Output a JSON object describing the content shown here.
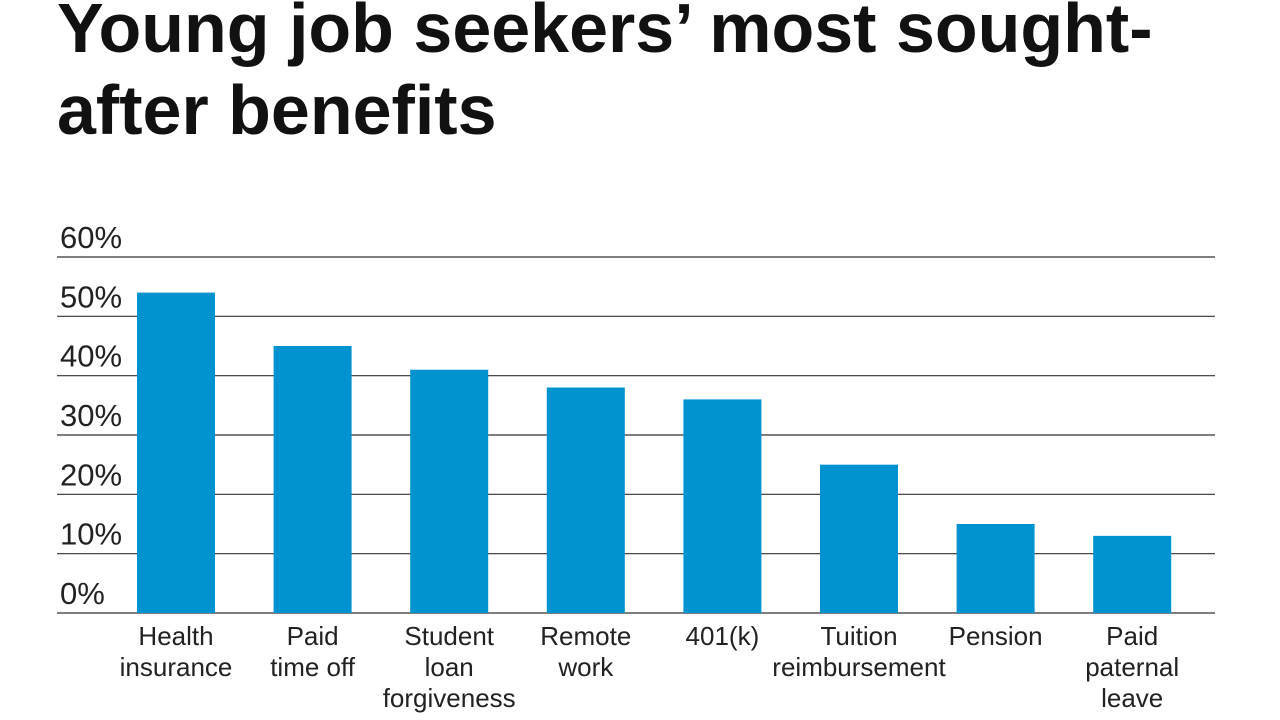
{
  "chart_data": {
    "type": "bar",
    "title": [
      "Young job seekers’ most sought-",
      "after benefits"
    ],
    "categories": [
      [
        "Health",
        "insurance"
      ],
      [
        "Paid",
        "time off"
      ],
      [
        "Student",
        "loan",
        "forgiveness"
      ],
      [
        "Remote",
        "work"
      ],
      [
        "401(k)"
      ],
      [
        "Tuition",
        "reimbursement"
      ],
      [
        "Pension"
      ],
      [
        "Paid",
        "paternal",
        "leave"
      ]
    ],
    "values": [
      54,
      45,
      41,
      38,
      36,
      25,
      15,
      13
    ],
    "color": "#0093d0",
    "ylim": [
      0,
      60
    ],
    "yticks": [
      {
        "value": 0,
        "label": "0%"
      },
      {
        "value": 10,
        "label": "10%"
      },
      {
        "value": 20,
        "label": "20%"
      },
      {
        "value": 30,
        "label": "30%"
      },
      {
        "value": 40,
        "label": "40%"
      },
      {
        "value": 50,
        "label": "50%"
      },
      {
        "value": 60,
        "label": "60%"
      }
    ],
    "grid": true
  }
}
